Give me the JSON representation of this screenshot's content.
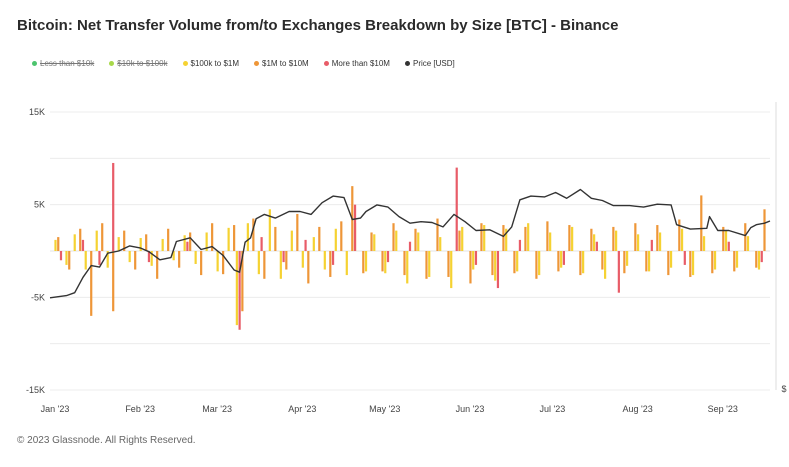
{
  "title": "Bitcoin: Net Transfer Volume from/to Exchanges Breakdown by Size [BTC] - Binance",
  "footer": "© 2023 Glassnode. All Rights Reserved.",
  "legend": [
    {
      "label": "Less than $10k",
      "color": "#4cc46e",
      "disabled": true
    },
    {
      "label": "$10k to $100k",
      "color": "#a8d84a",
      "disabled": true
    },
    {
      "label": "$100k to $1M",
      "color": "#f5d232",
      "disabled": false
    },
    {
      "label": "$1M to $10M",
      "color": "#ee9638",
      "disabled": false
    },
    {
      "label": "More than $10M",
      "color": "#e85c68",
      "disabled": false
    },
    {
      "label": "Price [USD]",
      "color": "#333333",
      "disabled": false
    }
  ],
  "right_axis_label": "$",
  "chart_data": {
    "type": "bar",
    "stacked": true,
    "title": "Bitcoin: Net Transfer Volume from/to Exchanges Breakdown by Size [BTC] - Binance",
    "ylabel": "",
    "xlabel": "",
    "ylim": [
      -15000,
      15000
    ],
    "y_ticks": [
      {
        "value": 15000,
        "label": "15K"
      },
      {
        "value": 5000,
        "label": "5K"
      },
      {
        "value": -5000,
        "label": "-5K"
      },
      {
        "value": -15000,
        "label": "-15K"
      }
    ],
    "x_domain": [
      "2023-01-01",
      "2023-09-20"
    ],
    "x_ticks": [
      {
        "date": "2023-01-01",
        "label": "Jan '23"
      },
      {
        "date": "2023-02-01",
        "label": "Feb '23"
      },
      {
        "date": "2023-03-01",
        "label": "Mar '23"
      },
      {
        "date": "2023-04-01",
        "label": "Apr '23"
      },
      {
        "date": "2023-05-01",
        "label": "May '23"
      },
      {
        "date": "2023-06-01",
        "label": "Jun '23"
      },
      {
        "date": "2023-07-01",
        "label": "Jul '23"
      },
      {
        "date": "2023-08-01",
        "label": "Aug '23"
      },
      {
        "date": "2023-09-01",
        "label": "Sep '23"
      }
    ],
    "grid": true,
    "legend_position": "top-left",
    "series": [
      {
        "name": "$100k to $1M",
        "color": "#f5d232",
        "points": [
          [
            "2023-01-03",
            1200
          ],
          [
            "2023-01-07",
            -1500
          ],
          [
            "2023-01-10",
            1800
          ],
          [
            "2023-01-14",
            -2000
          ],
          [
            "2023-01-18",
            2200
          ],
          [
            "2023-01-22",
            -1800
          ],
          [
            "2023-01-26",
            1500
          ],
          [
            "2023-01-30",
            -1200
          ],
          [
            "2023-02-03",
            1400
          ],
          [
            "2023-02-07",
            -1600
          ],
          [
            "2023-02-11",
            1300
          ],
          [
            "2023-02-15",
            -1000
          ],
          [
            "2023-02-19",
            1700
          ],
          [
            "2023-02-23",
            -1400
          ],
          [
            "2023-02-27",
            2000
          ],
          [
            "2023-03-03",
            -2200
          ],
          [
            "2023-03-07",
            2500
          ],
          [
            "2023-03-10",
            -8000
          ],
          [
            "2023-03-14",
            3000
          ],
          [
            "2023-03-18",
            -2500
          ],
          [
            "2023-03-22",
            4500
          ],
          [
            "2023-03-26",
            -3000
          ],
          [
            "2023-03-30",
            2200
          ],
          [
            "2023-04-03",
            -1800
          ],
          [
            "2023-04-07",
            1500
          ],
          [
            "2023-04-11",
            -2000
          ],
          [
            "2023-04-15",
            2400
          ],
          [
            "2023-04-19",
            -2600
          ],
          [
            "2023-04-22",
            3000
          ],
          [
            "2023-04-26",
            -2200
          ],
          [
            "2023-04-29",
            1800
          ],
          [
            "2023-05-03",
            -2400
          ],
          [
            "2023-05-07",
            2200
          ],
          [
            "2023-05-11",
            -3500
          ],
          [
            "2023-05-15",
            2000
          ],
          [
            "2023-05-19",
            -2800
          ],
          [
            "2023-05-23",
            1500
          ],
          [
            "2023-05-27",
            -4000
          ],
          [
            "2023-05-31",
            2600
          ],
          [
            "2023-06-04",
            -2000
          ],
          [
            "2023-06-08",
            2800
          ],
          [
            "2023-06-12",
            -3200
          ],
          [
            "2023-06-16",
            2400
          ],
          [
            "2023-06-20",
            -2200
          ],
          [
            "2023-06-24",
            3000
          ],
          [
            "2023-06-28",
            -2600
          ],
          [
            "2023-07-02",
            2000
          ],
          [
            "2023-07-06",
            -1800
          ],
          [
            "2023-07-10",
            2600
          ],
          [
            "2023-07-14",
            -2400
          ],
          [
            "2023-07-18",
            1800
          ],
          [
            "2023-07-22",
            -3000
          ],
          [
            "2023-07-26",
            2200
          ],
          [
            "2023-07-30",
            -1600
          ],
          [
            "2023-08-03",
            1800
          ],
          [
            "2023-08-07",
            -2200
          ],
          [
            "2023-08-11",
            2000
          ],
          [
            "2023-08-15",
            -1800
          ],
          [
            "2023-08-19",
            2400
          ],
          [
            "2023-08-23",
            -2600
          ],
          [
            "2023-08-27",
            1600
          ],
          [
            "2023-08-31",
            -2000
          ],
          [
            "2023-09-04",
            2200
          ],
          [
            "2023-09-08",
            -1800
          ],
          [
            "2023-09-12",
            1600
          ],
          [
            "2023-09-16",
            -2000
          ]
        ]
      },
      {
        "name": "$1M to $10M",
        "color": "#ee9638",
        "points": [
          [
            "2023-01-04",
            1500
          ],
          [
            "2023-01-08",
            -2000
          ],
          [
            "2023-01-12",
            2400
          ],
          [
            "2023-01-16",
            -7000
          ],
          [
            "2023-01-20",
            3000
          ],
          [
            "2023-01-24",
            -6500
          ],
          [
            "2023-01-28",
            2200
          ],
          [
            "2023-02-01",
            -2000
          ],
          [
            "2023-02-05",
            1800
          ],
          [
            "2023-02-09",
            -3000
          ],
          [
            "2023-02-13",
            2400
          ],
          [
            "2023-02-17",
            -1800
          ],
          [
            "2023-02-21",
            2000
          ],
          [
            "2023-02-25",
            -2600
          ],
          [
            "2023-03-01",
            3000
          ],
          [
            "2023-03-05",
            -2500
          ],
          [
            "2023-03-09",
            2800
          ],
          [
            "2023-03-12",
            -6500
          ],
          [
            "2023-03-16",
            3500
          ],
          [
            "2023-03-20",
            -3000
          ],
          [
            "2023-03-24",
            2600
          ],
          [
            "2023-03-28",
            -2000
          ],
          [
            "2023-04-01",
            4000
          ],
          [
            "2023-04-05",
            -3500
          ],
          [
            "2023-04-09",
            2600
          ],
          [
            "2023-04-13",
            -2800
          ],
          [
            "2023-04-17",
            3200
          ],
          [
            "2023-04-21",
            7000
          ],
          [
            "2023-04-25",
            -2400
          ],
          [
            "2023-04-28",
            2000
          ],
          [
            "2023-05-02",
            -2200
          ],
          [
            "2023-05-06",
            3000
          ],
          [
            "2023-05-10",
            -2600
          ],
          [
            "2023-05-14",
            2400
          ],
          [
            "2023-05-18",
            -3000
          ],
          [
            "2023-05-22",
            3500
          ],
          [
            "2023-05-26",
            -2800
          ],
          [
            "2023-05-30",
            2200
          ],
          [
            "2023-06-03",
            -3500
          ],
          [
            "2023-06-07",
            3000
          ],
          [
            "2023-06-11",
            -2600
          ],
          [
            "2023-06-15",
            2800
          ],
          [
            "2023-06-19",
            -2400
          ],
          [
            "2023-06-23",
            2600
          ],
          [
            "2023-06-27",
            -3000
          ],
          [
            "2023-07-01",
            3200
          ],
          [
            "2023-07-05",
            -2200
          ],
          [
            "2023-07-09",
            2800
          ],
          [
            "2023-07-13",
            -2600
          ],
          [
            "2023-07-17",
            2400
          ],
          [
            "2023-07-21",
            -2000
          ],
          [
            "2023-07-25",
            2600
          ],
          [
            "2023-07-29",
            -2400
          ],
          [
            "2023-08-02",
            3000
          ],
          [
            "2023-08-06",
            -2200
          ],
          [
            "2023-08-10",
            2800
          ],
          [
            "2023-08-14",
            -2600
          ],
          [
            "2023-08-18",
            3400
          ],
          [
            "2023-08-22",
            -2800
          ],
          [
            "2023-08-26",
            6000
          ],
          [
            "2023-08-30",
            -2400
          ],
          [
            "2023-09-03",
            2600
          ],
          [
            "2023-09-07",
            -2200
          ],
          [
            "2023-09-11",
            3000
          ],
          [
            "2023-09-15",
            -1800
          ],
          [
            "2023-09-18",
            4500
          ]
        ]
      },
      {
        "name": "More than $10M",
        "color": "#e85c68",
        "points": [
          [
            "2023-01-05",
            -1000
          ],
          [
            "2023-01-13",
            1200
          ],
          [
            "2023-01-19",
            -1500
          ],
          [
            "2023-01-24",
            9500
          ],
          [
            "2023-02-06",
            -1200
          ],
          [
            "2023-02-20",
            1000
          ],
          [
            "2023-03-11",
            -8500
          ],
          [
            "2023-03-19",
            1500
          ],
          [
            "2023-03-27",
            -1200
          ],
          [
            "2023-04-04",
            1200
          ],
          [
            "2023-04-14",
            -1500
          ],
          [
            "2023-04-22",
            5000
          ],
          [
            "2023-05-04",
            -1200
          ],
          [
            "2023-05-12",
            1000
          ],
          [
            "2023-05-29",
            9000
          ],
          [
            "2023-06-05",
            -1500
          ],
          [
            "2023-06-13",
            -4000
          ],
          [
            "2023-06-21",
            1200
          ],
          [
            "2023-07-07",
            -1500
          ],
          [
            "2023-07-19",
            1000
          ],
          [
            "2023-07-27",
            -4500
          ],
          [
            "2023-08-08",
            1200
          ],
          [
            "2023-08-20",
            -1500
          ],
          [
            "2023-09-05",
            1000
          ],
          [
            "2023-09-17",
            -1200
          ]
        ]
      }
    ],
    "price_line": {
      "name": "Price [USD]",
      "color": "#333333",
      "points": [
        [
          "2023-01-01",
          16600
        ],
        [
          "2023-01-07",
          16900
        ],
        [
          "2023-01-10",
          17300
        ],
        [
          "2023-01-13",
          19400
        ],
        [
          "2023-01-16",
          21000
        ],
        [
          "2023-01-19",
          20800
        ],
        [
          "2023-01-22",
          22700
        ],
        [
          "2023-01-26",
          23000
        ],
        [
          "2023-01-30",
          23700
        ],
        [
          "2023-02-03",
          23400
        ],
        [
          "2023-02-06",
          22900
        ],
        [
          "2023-02-10",
          21800
        ],
        [
          "2023-02-14",
          22100
        ],
        [
          "2023-02-16",
          24300
        ],
        [
          "2023-02-21",
          24800
        ],
        [
          "2023-02-25",
          23200
        ],
        [
          "2023-03-01",
          23600
        ],
        [
          "2023-03-05",
          22400
        ],
        [
          "2023-03-09",
          20400
        ],
        [
          "2023-03-11",
          20100
        ],
        [
          "2023-03-13",
          24200
        ],
        [
          "2023-03-15",
          24800
        ],
        [
          "2023-03-17",
          27400
        ],
        [
          "2023-03-20",
          28000
        ],
        [
          "2023-03-24",
          27500
        ],
        [
          "2023-03-29",
          28400
        ],
        [
          "2023-04-02",
          28400
        ],
        [
          "2023-04-06",
          28000
        ],
        [
          "2023-04-10",
          29600
        ],
        [
          "2023-04-14",
          30500
        ],
        [
          "2023-04-18",
          30300
        ],
        [
          "2023-04-21",
          27300
        ],
        [
          "2023-04-24",
          27500
        ],
        [
          "2023-04-26",
          28400
        ],
        [
          "2023-04-30",
          29300
        ],
        [
          "2023-05-04",
          29000
        ],
        [
          "2023-05-08",
          27700
        ],
        [
          "2023-05-12",
          26800
        ],
        [
          "2023-05-16",
          27000
        ],
        [
          "2023-05-20",
          26900
        ],
        [
          "2023-05-24",
          26300
        ],
        [
          "2023-05-28",
          28000
        ],
        [
          "2023-06-01",
          27000
        ],
        [
          "2023-06-05",
          25800
        ],
        [
          "2023-06-10",
          25900
        ],
        [
          "2023-06-15",
          25000
        ],
        [
          "2023-06-18",
          26300
        ],
        [
          "2023-06-21",
          30000
        ],
        [
          "2023-06-25",
          30500
        ],
        [
          "2023-06-30",
          30400
        ],
        [
          "2023-07-04",
          31000
        ],
        [
          "2023-07-08",
          30200
        ],
        [
          "2023-07-13",
          31400
        ],
        [
          "2023-07-17",
          30200
        ],
        [
          "2023-07-21",
          29900
        ],
        [
          "2023-07-25",
          29200
        ],
        [
          "2023-07-31",
          29200
        ],
        [
          "2023-08-05",
          29000
        ],
        [
          "2023-08-10",
          29400
        ],
        [
          "2023-08-15",
          29300
        ],
        [
          "2023-08-17",
          26600
        ],
        [
          "2023-08-22",
          26000
        ],
        [
          "2023-08-28",
          26100
        ],
        [
          "2023-08-29",
          27700
        ],
        [
          "2023-09-01",
          25800
        ],
        [
          "2023-09-05",
          25800
        ],
        [
          "2023-09-11",
          25100
        ],
        [
          "2023-09-13",
          26200
        ],
        [
          "2023-09-15",
          26600
        ],
        [
          "2023-09-18",
          26800
        ],
        [
          "2023-09-20",
          27100
        ]
      ]
    }
  }
}
